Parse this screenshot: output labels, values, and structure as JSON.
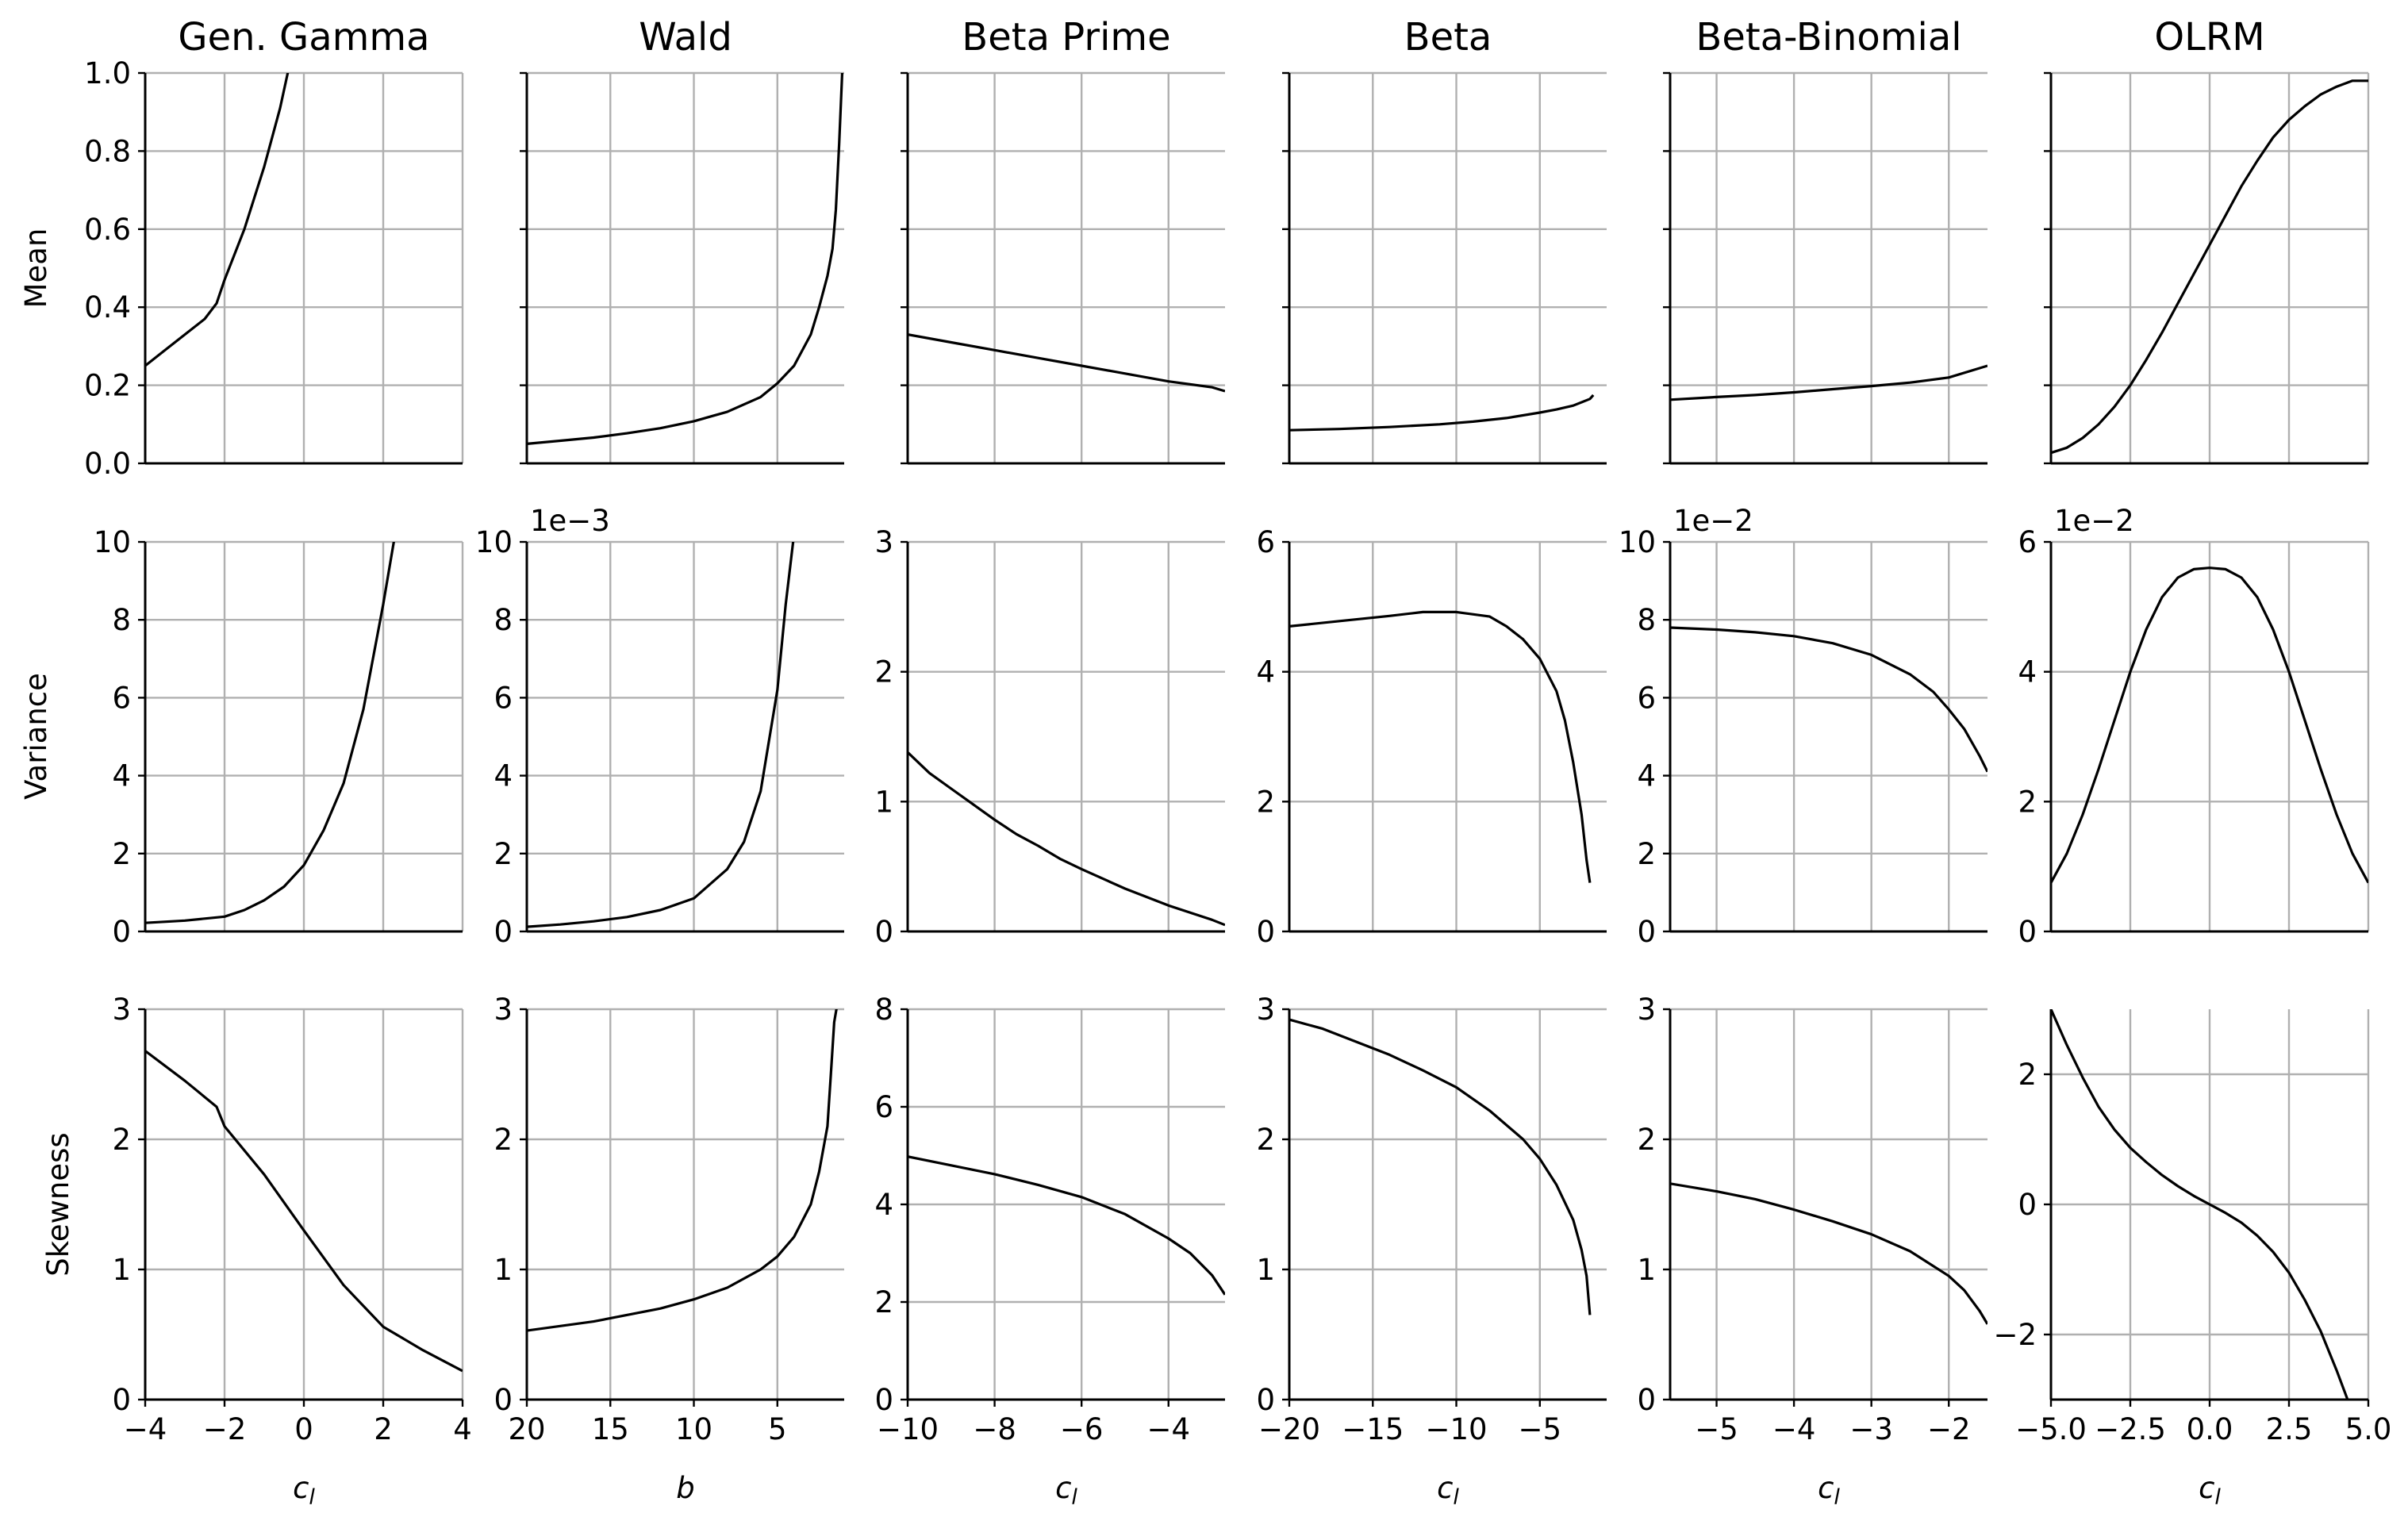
{
  "figure": {
    "row_labels": [
      "Mean",
      "Variance",
      "Skewness"
    ]
  },
  "chart_data": [
    {
      "type": "line",
      "id": "gg-mean",
      "title": "Gen. Gamma",
      "ylabel": "Mean",
      "xlabel": "",
      "xlim": [
        -4,
        4
      ],
      "ylim": [
        0,
        1
      ],
      "xticks": [
        -4,
        -2,
        0,
        2,
        4
      ],
      "yticks": [
        0,
        0.2,
        0.4,
        0.6,
        0.8,
        1.0
      ],
      "ytick_labels": [
        "0.0",
        "0.2",
        "0.4",
        "0.6",
        "0.8",
        "1.0"
      ],
      "x": [
        -4,
        -3.5,
        -3,
        -2.5,
        -2.2,
        -2,
        -1.5,
        -1,
        -0.6,
        -0.3
      ],
      "y": [
        0.25,
        0.29,
        0.33,
        0.37,
        0.41,
        0.47,
        0.6,
        0.76,
        0.91,
        1.05
      ]
    },
    {
      "type": "line",
      "id": "wald-mean",
      "title": "Wald",
      "xlabel": "",
      "xlim": [
        20,
        1
      ],
      "ylim": [
        0,
        1
      ],
      "xticks": [
        20,
        15,
        10,
        5
      ],
      "yticks": [
        0,
        0.2,
        0.4,
        0.6,
        0.8,
        1.0
      ],
      "x": [
        20,
        18,
        16,
        14,
        12,
        10,
        8,
        6,
        5,
        4,
        3,
        2.5,
        2,
        1.7,
        1.5,
        1.3,
        1.1
      ],
      "y": [
        0.05,
        0.058,
        0.066,
        0.077,
        0.09,
        0.108,
        0.132,
        0.17,
        0.205,
        0.25,
        0.33,
        0.4,
        0.48,
        0.55,
        0.65,
        0.82,
        1.02
      ]
    },
    {
      "type": "line",
      "id": "bp-mean",
      "title": "Beta Prime",
      "xlabel": "",
      "xlim": [
        -10,
        -2.7
      ],
      "ylim": [
        0,
        1
      ],
      "xticks": [
        -10,
        -8,
        -6,
        -4
      ],
      "yticks": [
        0,
        0.2,
        0.4,
        0.6,
        0.8,
        1.0
      ],
      "x": [
        -10,
        -9,
        -8,
        -7,
        -6,
        -5,
        -4,
        -3,
        -2.7
      ],
      "y": [
        0.33,
        0.31,
        0.29,
        0.27,
        0.25,
        0.23,
        0.21,
        0.195,
        0.185
      ]
    },
    {
      "type": "line",
      "id": "beta-mean",
      "title": "Beta",
      "xlabel": "",
      "xlim": [
        -20,
        -1
      ],
      "ylim": [
        0,
        1
      ],
      "xticks": [
        -20,
        -15,
        -10,
        -5
      ],
      "yticks": [
        0,
        0.2,
        0.4,
        0.6,
        0.8,
        1.0
      ],
      "x": [
        -20,
        -17,
        -14,
        -11,
        -9,
        -7,
        -5,
        -4,
        -3,
        -2,
        -1.8
      ],
      "y": [
        0.085,
        0.088,
        0.093,
        0.1,
        0.107,
        0.116,
        0.13,
        0.138,
        0.148,
        0.165,
        0.175
      ]
    },
    {
      "type": "line",
      "id": "bb-mean",
      "title": "Beta-Binomial",
      "xlabel": "",
      "xlim": [
        -5.6,
        -1.5
      ],
      "ylim": [
        0,
        1
      ],
      "xticks": [
        -5,
        -4,
        -3,
        -2
      ],
      "yticks": [
        0,
        0.2,
        0.4,
        0.6,
        0.8,
        1.0
      ],
      "x": [
        -5.6,
        -5,
        -4.5,
        -4,
        -3.5,
        -3,
        -2.5,
        -2,
        -1.5
      ],
      "y": [
        0.163,
        0.17,
        0.175,
        0.182,
        0.19,
        0.198,
        0.207,
        0.22,
        0.25
      ]
    },
    {
      "type": "line",
      "id": "olrm-mean",
      "title": "OLRM",
      "xlabel": "",
      "xlim": [
        -5,
        5
      ],
      "ylim": [
        0,
        1
      ],
      "xticks": [
        -5,
        -2.5,
        0,
        2.5,
        5
      ],
      "yticks": [
        0,
        0.2,
        0.4,
        0.6,
        0.8,
        1.0
      ],
      "x": [
        -5,
        -4.5,
        -4,
        -3.5,
        -3,
        -2.5,
        -2,
        -1.5,
        -1,
        -0.5,
        0,
        0.5,
        1,
        1.5,
        2,
        2.5,
        3,
        3.5,
        4,
        4.5,
        5
      ],
      "y": [
        0.027,
        0.04,
        0.065,
        0.1,
        0.145,
        0.2,
        0.265,
        0.335,
        0.41,
        0.485,
        0.56,
        0.635,
        0.71,
        0.775,
        0.835,
        0.88,
        0.915,
        0.945,
        0.965,
        0.98,
        0.98
      ]
    },
    {
      "type": "line",
      "id": "gg-var",
      "ylabel": "Variance",
      "xlabel": "",
      "xlim": [
        -4,
        4
      ],
      "ylim": [
        0,
        10
      ],
      "xticks": [
        -4,
        -2,
        0,
        2,
        4
      ],
      "yticks": [
        0,
        2,
        4,
        6,
        8,
        10
      ],
      "x": [
        -4,
        -3,
        -2,
        -1.5,
        -1,
        -0.5,
        0,
        0.5,
        1,
        1.5,
        2,
        2.3
      ],
      "y": [
        0.22,
        0.28,
        0.38,
        0.55,
        0.8,
        1.15,
        1.7,
        2.6,
        3.8,
        5.7,
        8.4,
        10.2
      ]
    },
    {
      "type": "line",
      "id": "wald-var",
      "xlabel": "",
      "offset_text": "1e−3",
      "xlim": [
        20,
        1
      ],
      "ylim": [
        0,
        10
      ],
      "xticks": [
        20,
        15,
        10,
        5
      ],
      "yticks": [
        0,
        2,
        4,
        6,
        8,
        10
      ],
      "x": [
        20,
        18,
        16,
        14,
        12,
        10,
        8,
        7,
        6,
        5,
        4.5,
        4,
        3.5
      ],
      "y": [
        0.12,
        0.18,
        0.26,
        0.37,
        0.55,
        0.85,
        1.6,
        2.3,
        3.6,
        6.2,
        8.4,
        10.2,
        10.2
      ]
    },
    {
      "type": "line",
      "id": "bp-var",
      "xlabel": "",
      "xlim": [
        -10,
        -2.7
      ],
      "ylim": [
        0,
        3
      ],
      "xticks": [
        -10,
        -8,
        -6,
        -4
      ],
      "yticks": [
        0,
        1,
        2,
        3
      ],
      "x": [
        -10,
        -9.5,
        -9,
        -8.5,
        -8,
        -7.5,
        -7,
        -6.5,
        -6,
        -5,
        -4,
        -3,
        -2.7
      ],
      "y": [
        1.38,
        1.22,
        1.1,
        0.98,
        0.86,
        0.75,
        0.66,
        0.56,
        0.48,
        0.33,
        0.2,
        0.09,
        0.05
      ]
    },
    {
      "type": "line",
      "id": "beta-var",
      "xlabel": "",
      "xlim": [
        -20,
        -1
      ],
      "ylim": [
        0,
        6
      ],
      "xticks": [
        -20,
        -15,
        -10,
        -5
      ],
      "yticks": [
        0,
        2,
        4,
        6
      ],
      "x": [
        -20,
        -17,
        -14,
        -12,
        -10,
        -8,
        -7,
        -6,
        -5,
        -4,
        -3.5,
        -3,
        -2.5,
        -2.2,
        -2
      ],
      "y": [
        4.7,
        4.78,
        4.86,
        4.92,
        4.92,
        4.85,
        4.7,
        4.5,
        4.2,
        3.7,
        3.25,
        2.6,
        1.8,
        1.1,
        0.75
      ]
    },
    {
      "type": "line",
      "id": "bb-var",
      "xlabel": "",
      "offset_text": "1e−2",
      "xlim": [
        -5.6,
        -1.5
      ],
      "ylim": [
        0,
        10
      ],
      "xticks": [
        -5,
        -4,
        -3,
        -2
      ],
      "yticks": [
        0,
        2,
        4,
        6,
        8,
        10
      ],
      "x": [
        -5.6,
        -5,
        -4.5,
        -4,
        -3.5,
        -3,
        -2.5,
        -2.2,
        -2,
        -1.8,
        -1.6,
        -1.5
      ],
      "y": [
        7.8,
        7.75,
        7.68,
        7.58,
        7.4,
        7.1,
        6.6,
        6.15,
        5.7,
        5.2,
        4.5,
        4.1
      ]
    },
    {
      "type": "line",
      "id": "olrm-var",
      "xlabel": "",
      "offset_text": "1e−2",
      "xlim": [
        -5,
        5
      ],
      "ylim": [
        0,
        6
      ],
      "xticks": [
        -5,
        -2.5,
        0,
        2.5,
        5
      ],
      "yticks": [
        0,
        2,
        4,
        6
      ],
      "x": [
        -5,
        -4.5,
        -4,
        -3.5,
        -3,
        -2.5,
        -2,
        -1.5,
        -1,
        -0.5,
        0,
        0.5,
        1,
        1.5,
        2,
        2.5,
        3,
        3.5,
        4,
        4.5,
        5
      ],
      "y": [
        0.75,
        1.2,
        1.8,
        2.5,
        3.25,
        4.0,
        4.65,
        5.15,
        5.45,
        5.58,
        5.6,
        5.58,
        5.45,
        5.15,
        4.65,
        4.0,
        3.25,
        2.5,
        1.8,
        1.2,
        0.75
      ]
    },
    {
      "type": "line",
      "id": "gg-skew",
      "ylabel": "Skewness",
      "xlabel": "c_l",
      "xlim": [
        -4,
        4
      ],
      "ylim": [
        0,
        3
      ],
      "xticks": [
        -4,
        -2,
        0,
        2,
        4
      ],
      "xtick_labels": [
        "−4",
        "−2",
        "0",
        "2",
        "4"
      ],
      "yticks": [
        0,
        1,
        2,
        3
      ],
      "x": [
        -4,
        -3,
        -2.2,
        -2,
        -1,
        0,
        1,
        2,
        3,
        4
      ],
      "y": [
        2.68,
        2.45,
        2.25,
        2.1,
        1.73,
        1.3,
        0.88,
        0.56,
        0.38,
        0.22
      ]
    },
    {
      "type": "line",
      "id": "wald-skew",
      "xlabel": "b",
      "xlim": [
        20,
        1
      ],
      "ylim": [
        0,
        3
      ],
      "xticks": [
        20,
        15,
        10,
        5
      ],
      "yticks": [
        0,
        1,
        2,
        3
      ],
      "x": [
        20,
        16,
        12,
        10,
        8,
        6,
        5,
        4,
        3,
        2.5,
        2,
        1.8,
        1.6,
        1.4
      ],
      "y": [
        0.53,
        0.6,
        0.7,
        0.77,
        0.86,
        1.0,
        1.1,
        1.25,
        1.5,
        1.75,
        2.1,
        2.5,
        2.9,
        3.05
      ]
    },
    {
      "type": "line",
      "id": "bp-skew",
      "xlabel": "c_l",
      "xlim": [
        -10,
        -2.7
      ],
      "ylim": [
        0,
        8
      ],
      "xticks": [
        -10,
        -8,
        -6,
        -4
      ],
      "xtick_labels": [
        "−10",
        "−8",
        "−6",
        "−4"
      ],
      "yticks": [
        0,
        2,
        4,
        6,
        8
      ],
      "x": [
        -10,
        -9,
        -8,
        -7,
        -6,
        -5,
        -4,
        -3.5,
        -3,
        -2.7
      ],
      "y": [
        4.98,
        4.8,
        4.62,
        4.4,
        4.15,
        3.8,
        3.3,
        3.0,
        2.55,
        2.15
      ]
    },
    {
      "type": "line",
      "id": "beta-skew",
      "xlabel": "c_l",
      "xlim": [
        -20,
        -1
      ],
      "ylim": [
        0,
        3
      ],
      "xticks": [
        -20,
        -15,
        -10,
        -5
      ],
      "xtick_labels": [
        "−20",
        "−15",
        "−10",
        "−5"
      ],
      "yticks": [
        0,
        1,
        2,
        3
      ],
      "x": [
        -20,
        -18,
        -16,
        -14,
        -12,
        -10,
        -8,
        -6,
        -5,
        -4,
        -3,
        -2.5,
        -2.2,
        -2
      ],
      "y": [
        2.92,
        2.85,
        2.75,
        2.65,
        2.53,
        2.4,
        2.22,
        2.0,
        1.85,
        1.65,
        1.38,
        1.15,
        0.95,
        0.65
      ]
    },
    {
      "type": "line",
      "id": "bb-skew",
      "xlabel": "c_l",
      "xlim": [
        -5.6,
        -1.5
      ],
      "ylim": [
        0,
        3
      ],
      "xticks": [
        -5,
        -4,
        -3,
        -2
      ],
      "xtick_labels": [
        "−5",
        "−4",
        "−3",
        "−2"
      ],
      "yticks": [
        0,
        1,
        2,
        3
      ],
      "x": [
        -5.6,
        -5,
        -4.5,
        -4,
        -3.5,
        -3,
        -2.5,
        -2,
        -1.8,
        -1.6,
        -1.5
      ],
      "y": [
        1.66,
        1.6,
        1.54,
        1.46,
        1.37,
        1.27,
        1.14,
        0.95,
        0.84,
        0.68,
        0.58
      ]
    },
    {
      "type": "line",
      "id": "olrm-skew",
      "xlabel": "c_l",
      "xlim": [
        -5,
        5
      ],
      "ylim": [
        -3,
        3
      ],
      "xticks": [
        -5,
        -2.5,
        0,
        2.5,
        5
      ],
      "xtick_labels": [
        "−5.0",
        "−2.5",
        "0.0",
        "2.5",
        "5.0"
      ],
      "yticks": [
        -2,
        0,
        2
      ],
      "ytick_labels": [
        "−2",
        "0",
        "2"
      ],
      "x": [
        -5,
        -4.5,
        -4,
        -3.5,
        -3,
        -2.5,
        -2,
        -1.5,
        -1,
        -0.5,
        0,
        0.5,
        1,
        1.5,
        2,
        2.5,
        3,
        3.5,
        4,
        4.5,
        4.8
      ],
      "y": [
        3.0,
        2.45,
        1.95,
        1.5,
        1.15,
        0.87,
        0.65,
        0.45,
        0.28,
        0.13,
        0,
        -0.13,
        -0.28,
        -0.48,
        -0.73,
        -1.05,
        -1.47,
        -1.95,
        -2.55,
        -3.2,
        -3.5
      ]
    }
  ]
}
